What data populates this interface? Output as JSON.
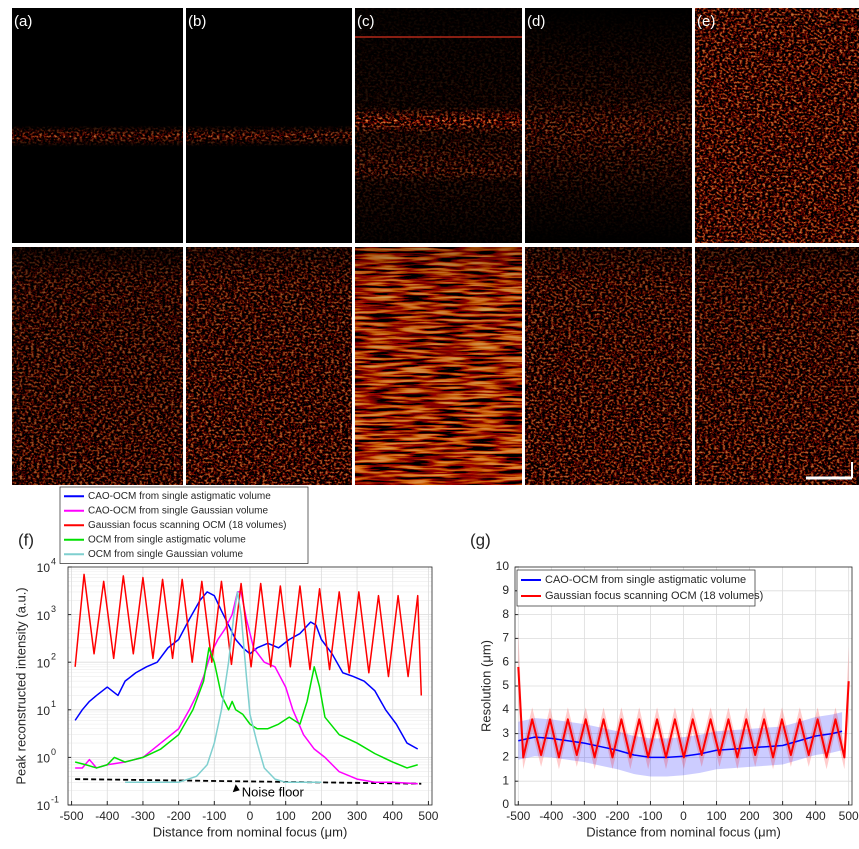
{
  "panels": {
    "labels": [
      "(a)",
      "(b)",
      "(c)",
      "(d)",
      "(e)"
    ]
  },
  "chart_data": [
    {
      "type": "line",
      "panel_label": "(f)",
      "log_y": true,
      "grid": true,
      "legend": "above",
      "xlabel": "Distance from nominal focus (μm)",
      "ylabel": "Peak reconstructed intensity (a.u.)",
      "xlim": [
        -510,
        510
      ],
      "xticks": [
        -500,
        -400,
        -300,
        -200,
        -100,
        0,
        100,
        200,
        300,
        400,
        500
      ],
      "ylim": [
        0.1,
        10000
      ],
      "yticks": [
        {
          "value": 0.1,
          "label": "10",
          "exponent": "-1"
        },
        {
          "value": 1,
          "label": "10",
          "exponent": "0"
        },
        {
          "value": 10,
          "label": "10",
          "exponent": "1"
        },
        {
          "value": 100,
          "label": "10",
          "exponent": "2"
        },
        {
          "value": 1000,
          "label": "10",
          "exponent": "3"
        },
        {
          "value": 10000,
          "label": "10",
          "exponent": "4"
        }
      ],
      "series": [
        {
          "name": "CAO-OCM from single astigmatic volume",
          "color": "#0000ff",
          "x": [
            -490,
            -470,
            -450,
            -430,
            -400,
            -370,
            -350,
            -320,
            -290,
            -260,
            -230,
            -200,
            -170,
            -140,
            -120,
            -100,
            -80,
            -60,
            -40,
            -20,
            0,
            20,
            50,
            80,
            110,
            140,
            170,
            185,
            200,
            230,
            260,
            290,
            320,
            350,
            380,
            410,
            440,
            470
          ],
          "values": [
            6,
            10,
            15,
            20,
            30,
            20,
            40,
            60,
            80,
            100,
            200,
            300,
            800,
            2000,
            3000,
            2500,
            1200,
            600,
            300,
            200,
            150,
            200,
            250,
            200,
            300,
            400,
            700,
            600,
            300,
            150,
            60,
            50,
            40,
            25,
            10,
            5,
            2,
            1.5
          ]
        },
        {
          "name": "CAO-OCM from single Gaussian volume",
          "color": "#ff00ff",
          "x": [
            -490,
            -470,
            -450,
            -430,
            -400,
            -350,
            -300,
            -250,
            -200,
            -170,
            -150,
            -130,
            -110,
            -90,
            -70,
            -50,
            -35,
            -25,
            -10,
            10,
            40,
            70,
            100,
            120,
            150,
            180,
            210,
            250,
            300,
            350,
            400,
            470
          ],
          "values": [
            0.6,
            0.6,
            0.9,
            0.6,
            0.7,
            0.8,
            1,
            2,
            4,
            10,
            20,
            50,
            150,
            300,
            500,
            1000,
            3000,
            3000,
            800,
            200,
            100,
            80,
            30,
            10,
            3,
            1.5,
            1,
            0.5,
            0.35,
            0.3,
            0.3,
            0.28
          ]
        },
        {
          "name": "Gaussian focus scanning OCM (18 volumes)",
          "color": "#ff0000",
          "x": [
            -490,
            -465,
            -437,
            -410,
            -382,
            -355,
            -327,
            -300,
            -272,
            -245,
            -217,
            -190,
            -162,
            -135,
            -107,
            -80,
            -52,
            -25,
            3,
            30,
            58,
            85,
            113,
            140,
            168,
            195,
            223,
            250,
            278,
            305,
            333,
            360,
            388,
            415,
            443,
            470,
            480
          ],
          "values": [
            80,
            7000,
            150,
            5000,
            120,
            6500,
            150,
            6000,
            120,
            5500,
            120,
            5500,
            100,
            5000,
            100,
            5000,
            90,
            4500,
            80,
            4500,
            80,
            4000,
            80,
            4000,
            70,
            3500,
            70,
            3000,
            60,
            3000,
            60,
            2500,
            50,
            2500,
            50,
            2500,
            20
          ]
        },
        {
          "name": "OCM from single astigmatic volume",
          "color": "#00e000",
          "x": [
            -490,
            -460,
            -430,
            -400,
            -380,
            -350,
            -300,
            -250,
            -200,
            -160,
            -130,
            -115,
            -100,
            -80,
            -60,
            -50,
            -40,
            -20,
            0,
            20,
            50,
            80,
            110,
            140,
            160,
            180,
            195,
            210,
            250,
            300,
            350,
            400,
            440,
            470
          ],
          "values": [
            0.8,
            0.7,
            0.6,
            0.7,
            1,
            0.8,
            1,
            1.5,
            3,
            10,
            40,
            200,
            100,
            20,
            10,
            15,
            10,
            8,
            5,
            4,
            4,
            5,
            7,
            5,
            15,
            80,
            30,
            7,
            3,
            2,
            1.2,
            0.8,
            0.6,
            0.7
          ]
        },
        {
          "name": "OCM from single Gaussian volume",
          "color": "#7fcfcf",
          "x": [
            -350,
            -300,
            -250,
            -200,
            -150,
            -120,
            -100,
            -80,
            -60,
            -45,
            -35,
            -25,
            -10,
            0,
            20,
            40,
            70,
            100,
            150,
            200
          ],
          "values": [
            0.3,
            0.3,
            0.3,
            0.3,
            0.4,
            0.7,
            2,
            10,
            100,
            1000,
            3000,
            1000,
            50,
            8,
            2,
            0.6,
            0.35,
            0.3,
            0.3,
            0.3
          ]
        }
      ],
      "noise_floor": {
        "text": "Noise floor",
        "color": "#000000",
        "x": [
          -490,
          480
        ],
        "values": [
          0.35,
          0.28
        ]
      }
    },
    {
      "type": "line",
      "panel_label": "(g)",
      "log_y": false,
      "grid": true,
      "legend": "upper left",
      "xlabel": "Distance from nominal focus (μm)",
      "ylabel": "Resolution (μm)",
      "xlim": [
        -510,
        510
      ],
      "xticks": [
        -500,
        -400,
        -300,
        -200,
        -100,
        0,
        100,
        200,
        300,
        400,
        500
      ],
      "ylim": [
        0,
        10
      ],
      "yticks": [
        0,
        1,
        2,
        3,
        4,
        5,
        6,
        7,
        8,
        9,
        10
      ],
      "series": [
        {
          "name": "CAO-OCM from single astigmatic volume",
          "color": "#0000ff",
          "x": [
            -500,
            -450,
            -400,
            -350,
            -300,
            -250,
            -200,
            -150,
            -100,
            -50,
            0,
            50,
            100,
            150,
            200,
            250,
            300,
            350,
            400,
            450,
            480
          ],
          "values": [
            2.7,
            2.85,
            2.8,
            2.7,
            2.6,
            2.45,
            2.3,
            2.1,
            2.0,
            2.0,
            2.05,
            2.15,
            2.3,
            2.35,
            2.4,
            2.45,
            2.5,
            2.7,
            2.9,
            3.0,
            3.1
          ],
          "errors": [
            0.8,
            0.8,
            0.8,
            0.8,
            0.8,
            0.8,
            0.8,
            0.8,
            0.8,
            0.8,
            0.8,
            0.8,
            0.8,
            0.8,
            0.8,
            0.8,
            0.8,
            0.8,
            0.8,
            0.8,
            0.8
          ]
        },
        {
          "name": "Gaussian focus scanning OCM (18 volumes)",
          "color": "#ff0000",
          "x": [
            -500,
            -485,
            -458,
            -431,
            -404,
            -377,
            -350,
            -323,
            -296,
            -269,
            -242,
            -215,
            -188,
            -161,
            -134,
            -107,
            -80,
            -53,
            -26,
            1,
            28,
            55,
            82,
            109,
            136,
            163,
            190,
            217,
            244,
            271,
            298,
            325,
            352,
            379,
            406,
            433,
            460,
            487,
            500
          ],
          "values": [
            5.8,
            2.0,
            3.6,
            2.1,
            3.6,
            2.0,
            3.6,
            2.1,
            3.6,
            2.0,
            3.6,
            2.0,
            3.6,
            2.0,
            3.6,
            2.0,
            3.6,
            2.0,
            3.6,
            2.0,
            3.6,
            2.1,
            3.6,
            2.1,
            3.6,
            2.0,
            3.6,
            2.1,
            3.6,
            2.0,
            3.6,
            2.1,
            3.6,
            2.1,
            3.6,
            2.0,
            3.6,
            2.0,
            5.2
          ],
          "errors": [
            1.5,
            0.5,
            0.5,
            0.5,
            0.5,
            0.5,
            0.5,
            0.5,
            0.5,
            0.5,
            0.5,
            0.5,
            0.5,
            0.5,
            0.5,
            0.5,
            0.5,
            0.5,
            0.5,
            0.5,
            0.5,
            0.5,
            0.5,
            0.5,
            0.5,
            0.5,
            0.5,
            0.5,
            0.5,
            0.5,
            0.5,
            0.5,
            0.5,
            0.5,
            0.5,
            0.5,
            0.5,
            0.5,
            1.5
          ]
        }
      ]
    }
  ]
}
